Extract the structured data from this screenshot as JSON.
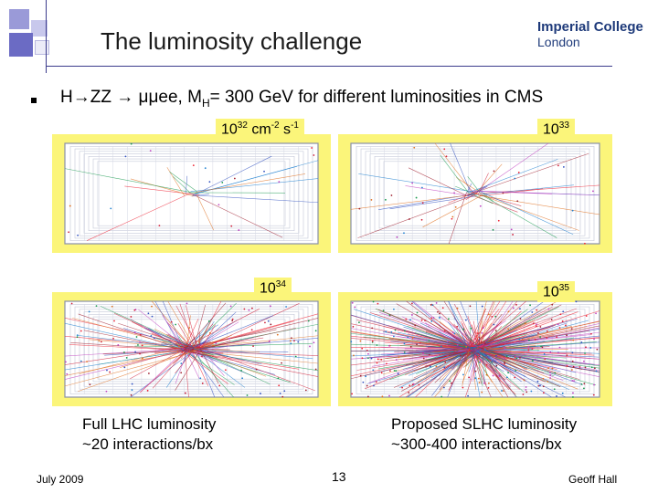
{
  "slide": {
    "title": "The luminosity challenge",
    "logo": {
      "line1": "Imperial College",
      "line2": "London"
    },
    "bullet_prefix": "H",
    "bullet_text": "ZZ",
    "bullet_text2": "μμee, M",
    "bullet_sub": "H",
    "bullet_text3": "= 300 GeV for different luminosities in CMS",
    "panels": [
      {
        "base": "10",
        "exp": "32",
        "unit": " cm",
        "unit_exp": "-2",
        "unit2": " s",
        "unit2_exp": "-1"
      },
      {
        "base": "10",
        "exp": "33"
      },
      {
        "base": "10",
        "exp": "34"
      },
      {
        "base": "10",
        "exp": "35"
      }
    ],
    "caption_left": {
      "line1": "Full LHC luminosity",
      "line2": "~20 interactions/bx"
    },
    "caption_right": {
      "line1": "Proposed SLHC luminosity",
      "line2": "~300-400 interactions/bx"
    },
    "footer": {
      "date": "July 2009",
      "page": "13",
      "author": "Geoff Hall"
    }
  },
  "colors": {
    "accent": "#3c3c8c",
    "panel_bg": "#fbf57a",
    "logo": "#1e3a7a"
  }
}
